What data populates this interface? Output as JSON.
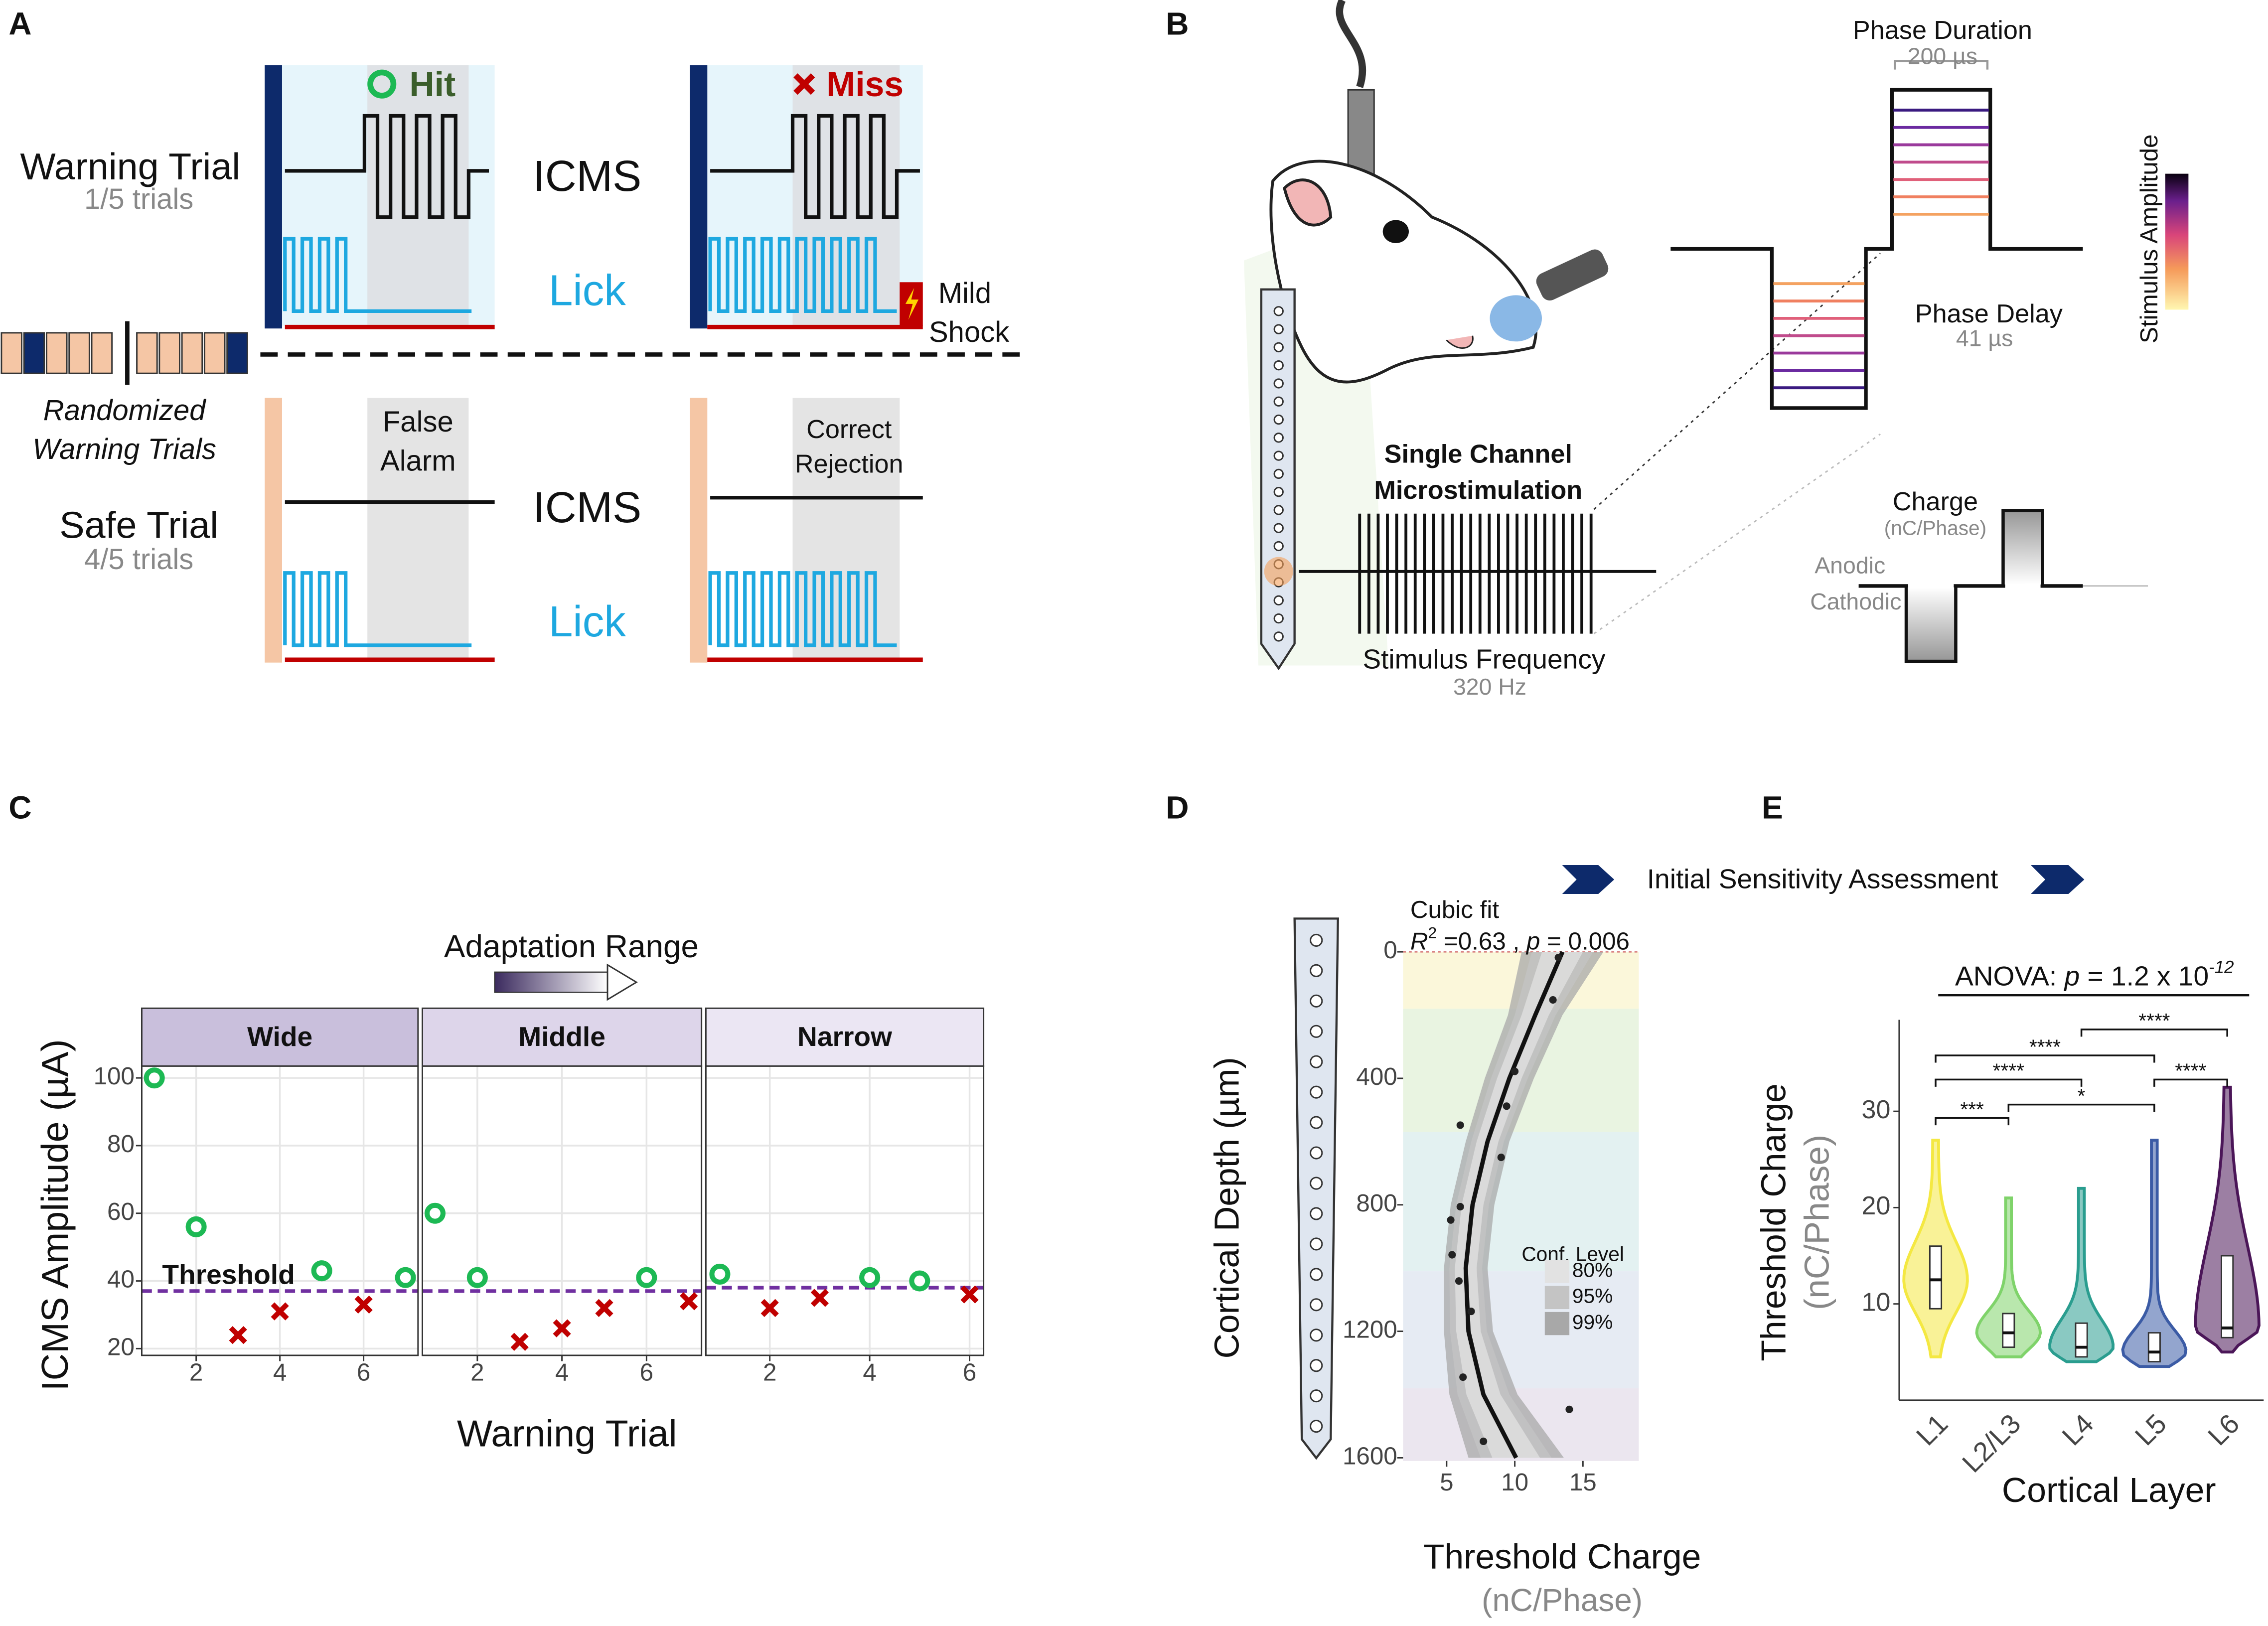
{
  "figure": {
    "panel_labels": [
      "A",
      "B",
      "C",
      "D",
      "E"
    ],
    "panel_a": {
      "warning_trial": "Warning Trial",
      "warning_rate": "1/5 trials",
      "hit": "Hit",
      "miss": "Miss",
      "icms_labels": [
        "ICMS",
        "ICMS"
      ],
      "lick_labels": [
        "Lick",
        "Lick"
      ],
      "mild_shock": [
        "Mild",
        "Shock"
      ],
      "randomized": [
        "Randomized",
        "Warning Trials"
      ],
      "safe_trial": "Safe Trial",
      "safe_rate": "4/5 trials",
      "false_alarm": [
        "False",
        "Alarm"
      ],
      "correct_rejection": [
        "Correct",
        "Rejection"
      ]
    },
    "panel_b": {
      "phase_duration": "Phase Duration",
      "phase_duration_value": "200 µs",
      "colorbar_label": "Stimulus Amplitude",
      "phase_delay": "Phase Delay",
      "phase_delay_value": "41 µs",
      "microstim": [
        "Single Channel",
        "Microstimulation"
      ],
      "frequency": "Stimulus Frequency",
      "frequency_value": "320 Hz",
      "charge": "Charge",
      "charge_unit": "(nC/Phase)",
      "anodic": "Anodic",
      "cathodic": "Cathodic"
    },
    "banner": "Initial Sensitivity Assessment"
  },
  "chart_data": [
    {
      "type": "scatter",
      "title": "Adaptation Range",
      "xlabel": "Warning Trial",
      "ylabel": "ICMS Amplitude (µA)",
      "threshold_label": "Threshold",
      "ylim": [
        18,
        103.5
      ],
      "yticks": [
        20,
        40,
        60,
        80,
        100
      ],
      "grid": true,
      "hit_color": "#1db954",
      "miss_color": "#c00000",
      "threshold_color": "#7030a0",
      "facets": [
        {
          "name": "Wide",
          "color": "#c9bfdc",
          "xlim": [
            0.7,
            7.3
          ],
          "xticks": [
            2,
            4,
            6
          ],
          "threshold": 37,
          "hits": {
            "x": [
              1,
              2,
              5,
              7
            ],
            "values": [
              100,
              56,
              43,
              41
            ]
          },
          "misses": {
            "x": [
              3,
              4,
              6
            ],
            "values": [
              24,
              31,
              33
            ]
          }
        },
        {
          "name": "Middle",
          "color": "#ddd5ea",
          "xlim": [
            0.7,
            7.3
          ],
          "xticks": [
            2,
            4,
            6
          ],
          "threshold": 37,
          "hits": {
            "x": [
              1,
              2,
              6
            ],
            "values": [
              60,
              41,
              41
            ]
          },
          "misses": {
            "x": [
              3,
              4,
              5,
              7
            ],
            "values": [
              22,
              26,
              32,
              34
            ]
          }
        },
        {
          "name": "Narrow",
          "color": "#ebe6f3",
          "xlim": [
            0.72,
            6.28
          ],
          "xticks": [
            2,
            4,
            6
          ],
          "threshold": 38,
          "hits": {
            "x": [
              1,
              4,
              5
            ],
            "values": [
              42,
              41,
              40
            ]
          },
          "misses": {
            "x": [
              2,
              3,
              6
            ],
            "values": [
              32,
              35,
              36
            ]
          }
        }
      ]
    },
    {
      "type": "scatter",
      "ylabel": "Cortical Depth (µm)",
      "xlabel": [
        "Threshold Charge",
        "(nC/Phase)"
      ],
      "fit_title": "Cubic fit",
      "fit_stats": [
        "R",
        "2",
        " =0.63 , ",
        "p",
        " = 0.006"
      ],
      "legend_title": "Conf. Level",
      "xlim": [
        1.8,
        19.1
      ],
      "xticks": [
        5,
        10,
        15
      ],
      "ylim": [
        0,
        1610
      ],
      "y_reversed": true,
      "yticks": [
        0,
        400,
        800,
        1200,
        1600
      ],
      "x": [
        13.2,
        12.8,
        10,
        9.4,
        6,
        9,
        6,
        5.3,
        5.4,
        5.9,
        6.8,
        6.2,
        14,
        7.7
      ],
      "values": [
        18,
        152,
        378,
        488,
        548,
        650,
        806,
        848,
        958,
        1041,
        1137,
        1345,
        1447,
        1548
      ],
      "point_color": "#222222",
      "fit": {
        "depth": [
          0,
          200,
          400,
          600,
          800,
          1000,
          1200,
          1400,
          1600
        ],
        "charge": [
          13.5,
          11.5,
          9.6,
          8,
          6.9,
          6.4,
          6.6,
          7.7,
          10.1
        ]
      },
      "bands": [
        {
          "label": "80%",
          "color": "#e2e2e2",
          "half_width": [
            1.5,
            1,
            0.9,
            0.8,
            0.8,
            0.8,
            0.9,
            1.25,
            1.75
          ]
        },
        {
          "label": "95%",
          "color": "#c4c4c4",
          "half_width": [
            2.25,
            1.5,
            1.35,
            1.2,
            1.2,
            1.2,
            1.35,
            1.9,
            2.6
          ]
        },
        {
          "label": "99%",
          "color": "#a8a8a8",
          "half_width": [
            3,
            2,
            1.8,
            1.6,
            1.6,
            1.6,
            1.8,
            2.5,
            3.5
          ]
        }
      ],
      "layers": [
        {
          "top": 0,
          "bottom": 180,
          "color": "#fbf7da"
        },
        {
          "top": 180,
          "bottom": 570,
          "color": "#e9f4e1"
        },
        {
          "top": 570,
          "bottom": 1010,
          "color": "#e3f1f1"
        },
        {
          "top": 1010,
          "bottom": 1380,
          "color": "#e6ebf3"
        },
        {
          "top": 1380,
          "bottom": 1610,
          "color": "#ebe6ef"
        }
      ]
    },
    {
      "type": "violin",
      "title": [
        "ANOVA: ",
        "p",
        " = 1.2 x 10",
        "-12"
      ],
      "xlabel": "Cortical Layer",
      "ylabel": [
        "Threshold Charge",
        "(nC/Phase)"
      ],
      "categories": [
        "L1",
        "L2/L3",
        "L4",
        "L5",
        "L6"
      ],
      "colors": [
        "#f4e842",
        "#7fd36a",
        "#2a9d8f",
        "#3b5ba5",
        "#4b1658"
      ],
      "ylim": [
        0,
        39.5
      ],
      "yticks": [
        10,
        20,
        30
      ],
      "stats": {
        "min": [
          4.5,
          4.5,
          4,
          3.5,
          5
        ],
        "q1": [
          9.5,
          5.5,
          4.5,
          4,
          6.5
        ],
        "median": [
          12.5,
          7,
          5.5,
          5,
          7.5
        ],
        "q3": [
          16,
          9,
          8,
          7,
          15
        ],
        "max": [
          27,
          21,
          22,
          27,
          32.5
        ]
      },
      "comparisons": [
        {
          "from": 0,
          "to": 1,
          "label": "***",
          "y": 29.3
        },
        {
          "from": 1,
          "to": 3,
          "label": "*",
          "y": 30.7
        },
        {
          "from": 0,
          "to": 2,
          "label": "****",
          "y": 33.3
        },
        {
          "from": 3,
          "to": 4,
          "label": "****",
          "y": 33.3
        },
        {
          "from": 0,
          "to": 3,
          "label": "****",
          "y": 35.8
        },
        {
          "from": 2,
          "to": 4,
          "label": "****",
          "y": 38.5
        }
      ]
    }
  ]
}
